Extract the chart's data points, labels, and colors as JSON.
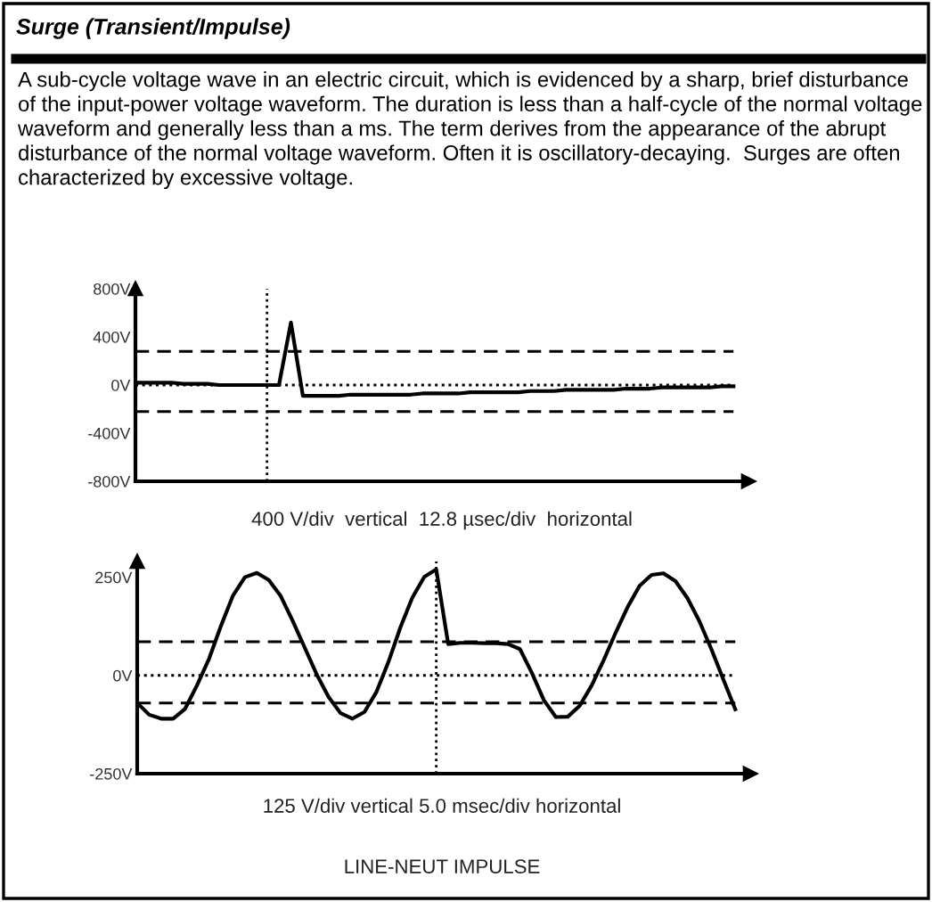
{
  "chart_data": [
    {
      "type": "line",
      "title": "Surge (Transient/Impulse)",
      "annotations": [
        "A sub-cycle voltage wave in an electric circuit, which is evidenced by a sharp, brief disturbance of the input-power voltage waveform. The duration is less than a half-cycle of the normal voltage waveform and generally less than a ms. The term derives from the appearance of the abrupt disturbance of the normal voltage waveform. Often it is oscillatory-decaying.  Surges are often characterized by excessive voltage."
      ],
      "xlabel": "400 V/div  vertical  12.8 µsec/div  horizontal",
      "categories": [
        null,
        null,
        null,
        null,
        null,
        null,
        null,
        null,
        null,
        null,
        null,
        null,
        null,
        null,
        null,
        null,
        null,
        null,
        null,
        null,
        null,
        null,
        null,
        null,
        null,
        null,
        null,
        null,
        null,
        null,
        null,
        null,
        null,
        null,
        null,
        null,
        null,
        null,
        null,
        null,
        null,
        null,
        null,
        null,
        null,
        null,
        null,
        null,
        null,
        null,
        null
      ],
      "series": [
        {
          "color": "#000000",
          "values": [
            20,
            20,
            20,
            20,
            10,
            10,
            10,
            0,
            0,
            0,
            0,
            0,
            0,
            520,
            -90,
            -90,
            -90,
            -90,
            -80,
            -80,
            -80,
            -80,
            -80,
            -80,
            -70,
            -70,
            -70,
            -70,
            -60,
            -60,
            -60,
            -60,
            -60,
            -50,
            -50,
            -50,
            -40,
            -40,
            -40,
            -40,
            -40,
            -30,
            -30,
            -30,
            -20,
            -20,
            -20,
            -20,
            -20,
            -10,
            -10
          ]
        }
      ],
      "ylim": [
        -800,
        800
      ],
      "yticks": [
        {
          "value": 800,
          "label": "800V"
        },
        {
          "value": 400,
          "label": "400V"
        },
        {
          "value": 0,
          "label": "0V"
        },
        {
          "value": -400,
          "label": "-400V"
        },
        {
          "value": -800,
          "label": "-800V"
        }
      ],
      "ref_lines": [
        {
          "axis": "y",
          "value": 280,
          "line_style": "dashed"
        },
        {
          "axis": "y",
          "value": -220,
          "line_style": "dashed"
        },
        {
          "axis": "y",
          "value": 0,
          "line_style": "dotted"
        }
      ],
      "tick_labels": "y",
      "grid": false,
      "marker": "none",
      "line_style": "solid"
    },
    {
      "type": "line",
      "xlabel": "125 V/div vertical 5.0 msec/div horizontal",
      "annotations": [
        "LINE-NEUT IMPULSE"
      ],
      "categories": [
        null,
        null,
        null,
        null,
        null,
        null,
        null,
        null,
        null,
        null,
        null,
        null,
        null,
        null,
        null,
        null,
        null,
        null,
        null,
        null,
        null,
        null,
        null,
        null,
        null,
        null,
        null,
        null,
        null,
        null,
        null,
        null,
        null,
        null,
        null,
        null,
        null,
        null,
        null,
        null,
        null,
        null,
        null,
        null,
        null,
        null,
        null,
        null,
        null,
        null,
        null
      ],
      "series": [
        {
          "color": "#000000",
          "values": [
            -70,
            -100,
            -110,
            -110,
            -85,
            -25,
            42,
            126,
            203,
            250,
            261,
            243,
            202,
            139,
            71,
            3,
            -55,
            -96,
            -110,
            -93,
            -42,
            34,
            122,
            198,
            251,
            270,
            80,
            83,
            83,
            82,
            82,
            80,
            67,
            6,
            -63,
            -106,
            -105,
            -77,
            -25,
            39,
            109,
            174,
            228,
            256,
            260,
            240,
            197,
            138,
            67,
            -10,
            -86
          ]
        }
      ],
      "ylim": [
        -250,
        290
      ],
      "yticks": [
        {
          "value": 250,
          "label": "250V"
        },
        {
          "value": 0,
          "label": "0V"
        },
        {
          "value": -250,
          "label": "-250V"
        }
      ],
      "ref_lines": [
        {
          "axis": "y",
          "value": 86,
          "line_style": "dashed"
        },
        {
          "axis": "y",
          "value": -70,
          "line_style": "dashed"
        },
        {
          "axis": "y",
          "value": 0,
          "line_style": "dotted"
        }
      ],
      "tick_labels": "y",
      "grid": false,
      "marker": "none",
      "line_style": "solid"
    }
  ]
}
